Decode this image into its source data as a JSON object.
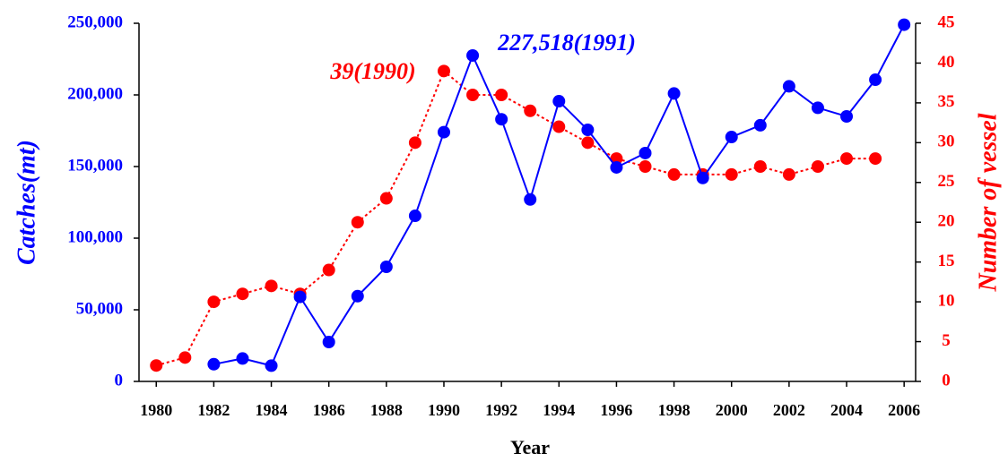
{
  "chart_data": {
    "type": "line",
    "x_label": "Year",
    "y_label": "Catches(mt)",
    "y2_label": "Number of vessel",
    "x": [
      1980,
      1981,
      1982,
      1983,
      1984,
      1985,
      1986,
      1987,
      1988,
      1989,
      1990,
      1991,
      1992,
      1993,
      1994,
      1995,
      1996,
      1997,
      1998,
      1999,
      2000,
      2001,
      2002,
      2003,
      2004,
      2005,
      2006
    ],
    "xlim": [
      1979.4,
      2006.4
    ],
    "xticks": [
      1980,
      1982,
      1984,
      1986,
      1988,
      1990,
      1992,
      1994,
      1996,
      1998,
      2000,
      2002,
      2004,
      2006
    ],
    "ylim": [
      0,
      250000
    ],
    "yticks": [
      0,
      {
        "value": 50000,
        "label": "50,000"
      },
      {
        "value": 100000,
        "label": "100,000"
      },
      {
        "value": 150000,
        "label": "150,000"
      },
      {
        "value": 200000,
        "label": "200,000"
      },
      {
        "value": 250000,
        "label": "250,000"
      }
    ],
    "y2lim": [
      0,
      45
    ],
    "y2ticks": [
      0,
      5,
      10,
      15,
      20,
      25,
      30,
      35,
      40,
      45
    ],
    "y_color": "#0000ff",
    "y2_color": "#ff0000",
    "grid": false,
    "series": [
      {
        "name": "Catches",
        "color": "#0000ff",
        "axis": "y",
        "line_style": "solid",
        "values": [
          null,
          null,
          12000,
          16000,
          11000,
          59000,
          27500,
          59500,
          80000,
          115600,
          174000,
          227518,
          183000,
          127000,
          195600,
          175600,
          149400,
          159400,
          201000,
          142000,
          170600,
          178800,
          206000,
          191000,
          185000,
          210600,
          249000
        ]
      },
      {
        "name": "Number of vessel",
        "color": "#ff0000",
        "axis": "y2",
        "line_style": "dotted",
        "values": [
          2,
          3,
          10,
          11,
          12,
          11,
          14,
          20,
          23,
          30,
          39,
          36,
          36,
          34,
          32,
          30,
          28,
          27,
          26,
          26,
          26,
          27,
          26,
          27,
          28,
          28,
          null
        ]
      }
    ],
    "annotations": [
      {
        "text": "227,518(1991)",
        "color": "#0000ff"
      },
      {
        "text": "39(1990)",
        "color": "#ff0000"
      }
    ]
  }
}
